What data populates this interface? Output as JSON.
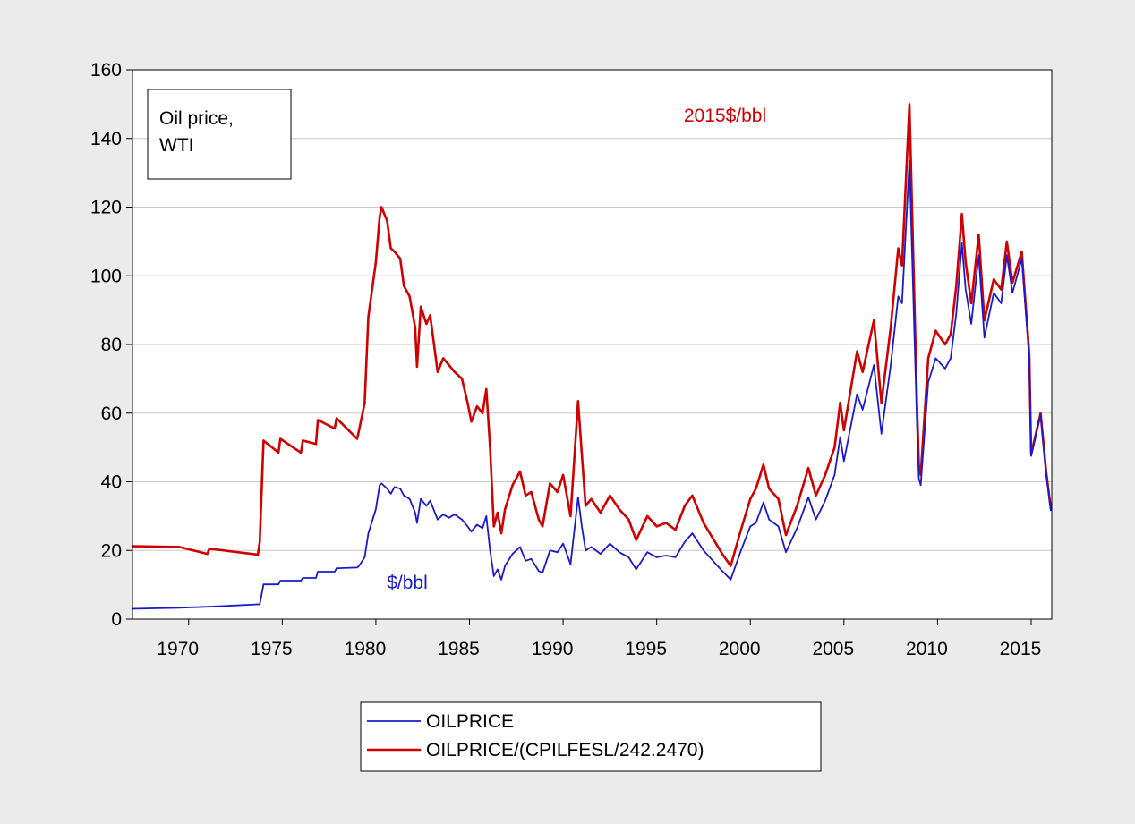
{
  "chart_data": {
    "type": "line",
    "annotations": [
      {
        "text": "2015$/bbl",
        "color": "#d00000"
      },
      {
        "text": "$/bbl",
        "color": "#1a1acc"
      }
    ],
    "box_text": [
      "Oil price,",
      "WTI"
    ],
    "x": [
      1967.0,
      1969.5,
      1971.0,
      1971.1,
      1973.7,
      1973.8,
      1974.0,
      1974.8,
      1974.9,
      1976.0,
      1976.1,
      1976.8,
      1976.9,
      1977.8,
      1977.9,
      1979.0,
      1979.1,
      1979.4,
      1979.6,
      1980.0,
      1980.2,
      1980.3,
      1980.6,
      1980.8,
      1981.0,
      1981.3,
      1981.5,
      1981.8,
      1982.1,
      1982.2,
      1982.4,
      1982.7,
      1982.9,
      1983.3,
      1983.6,
      1983.9,
      1984.2,
      1984.6,
      1984.9,
      1985.1,
      1985.4,
      1985.7,
      1985.9,
      1986.1,
      1986.3,
      1986.5,
      1986.7,
      1986.9,
      1987.3,
      1987.7,
      1988.0,
      1988.3,
      1988.7,
      1988.9,
      1989.3,
      1989.7,
      1990.0,
      1990.4,
      1990.8,
      1991.0,
      1991.2,
      1991.5,
      1992.0,
      1992.5,
      1993.0,
      1993.5,
      1993.9,
      1994.5,
      1995.0,
      1995.5,
      1996.0,
      1996.5,
      1996.9,
      1997.5,
      1998.0,
      1998.5,
      1998.95,
      1999.5,
      2000.0,
      2000.3,
      2000.7,
      2001.0,
      2001.5,
      2001.9,
      2002.5,
      2003.1,
      2003.5,
      2004.0,
      2004.5,
      2004.8,
      2005.0,
      2005.7,
      2006.0,
      2006.6,
      2007.0,
      2007.5,
      2007.9,
      2008.1,
      2008.5,
      2008.9,
      2009.0,
      2009.1,
      2009.5,
      2009.9,
      2010.4,
      2010.7,
      2011.0,
      2011.3,
      2011.5,
      2011.8,
      2012.2,
      2012.5,
      2013.0,
      2013.4,
      2013.7,
      2014.0,
      2014.5,
      2014.9,
      2015.0,
      2015.5,
      2015.8,
      2016.05
    ],
    "series": [
      {
        "name": "OILPRICE",
        "color": "#1a1acc",
        "values": [
          3.0,
          3.3,
          3.6,
          3.6,
          4.3,
          4.3,
          10.1,
          10.1,
          11.2,
          11.2,
          12.0,
          12.0,
          13.8,
          13.8,
          14.8,
          15.0,
          15.5,
          18,
          25,
          32,
          39,
          39.5,
          38,
          36.5,
          38.5,
          38,
          36,
          35,
          31,
          28,
          35,
          33,
          34.5,
          29,
          30.5,
          29.5,
          30.5,
          29,
          27,
          25.5,
          27.5,
          26.5,
          30,
          20,
          12.5,
          14.5,
          11.5,
          15.5,
          19,
          21,
          17,
          17.5,
          14,
          13.5,
          20,
          19.5,
          22,
          16,
          35.5,
          27,
          20,
          21,
          19,
          22,
          19.5,
          18,
          14.5,
          19.5,
          18,
          18.5,
          18,
          22.5,
          25,
          20,
          17,
          14,
          11.5,
          20,
          27,
          28,
          34,
          29,
          27,
          19.5,
          26.5,
          35.5,
          29,
          34.5,
          42,
          53,
          46,
          65.5,
          61,
          74,
          54,
          74,
          94,
          92,
          133.5,
          57,
          41,
          39,
          69,
          76,
          73,
          76,
          89,
          109.5,
          96,
          86,
          106,
          82,
          95,
          92,
          106,
          95,
          105,
          76,
          47.5,
          59.5,
          42.5,
          31.5
        ]
      },
      {
        "name": "OILPRICE/(CPILFESL/242.2470)",
        "color": "#d00000",
        "values": [
          21.2,
          21.0,
          19.0,
          20.5,
          18.8,
          22.5,
          52,
          48.5,
          52.5,
          48.5,
          52,
          51,
          58,
          55.5,
          58.5,
          52.5,
          55,
          63,
          88,
          104,
          117,
          120,
          116,
          108,
          107,
          105,
          97,
          94,
          85,
          73.5,
          91,
          86,
          88.5,
          72,
          76,
          74,
          72,
          70,
          63,
          57.5,
          62,
          60,
          67,
          50,
          27,
          31,
          25,
          32,
          39,
          43,
          36,
          37,
          29,
          27,
          39.5,
          37,
          42,
          30,
          63.5,
          48,
          33,
          35,
          31,
          36,
          32,
          29,
          23,
          30,
          27,
          28,
          26,
          33,
          36,
          28,
          23.5,
          19,
          15.5,
          26,
          35,
          38,
          45,
          38,
          35,
          24.5,
          33,
          44,
          36,
          42,
          50,
          63,
          55,
          78,
          72,
          87,
          63,
          85,
          108,
          103,
          150,
          63,
          45,
          42,
          76,
          84,
          80,
          83,
          97,
          118,
          104,
          92,
          112,
          87,
          99,
          96,
          110,
          98,
          107,
          77,
          48,
          60,
          43,
          32
        ]
      }
    ],
    "xlim": [
      1967,
      2016.1
    ],
    "xticks": [
      1970,
      1975,
      1980,
      1985,
      1990,
      1995,
      2000,
      2005,
      2010,
      2015
    ],
    "ylim": [
      0,
      160
    ],
    "yticks": [
      0,
      20,
      40,
      60,
      80,
      100,
      120,
      140,
      160
    ],
    "grid": true
  }
}
